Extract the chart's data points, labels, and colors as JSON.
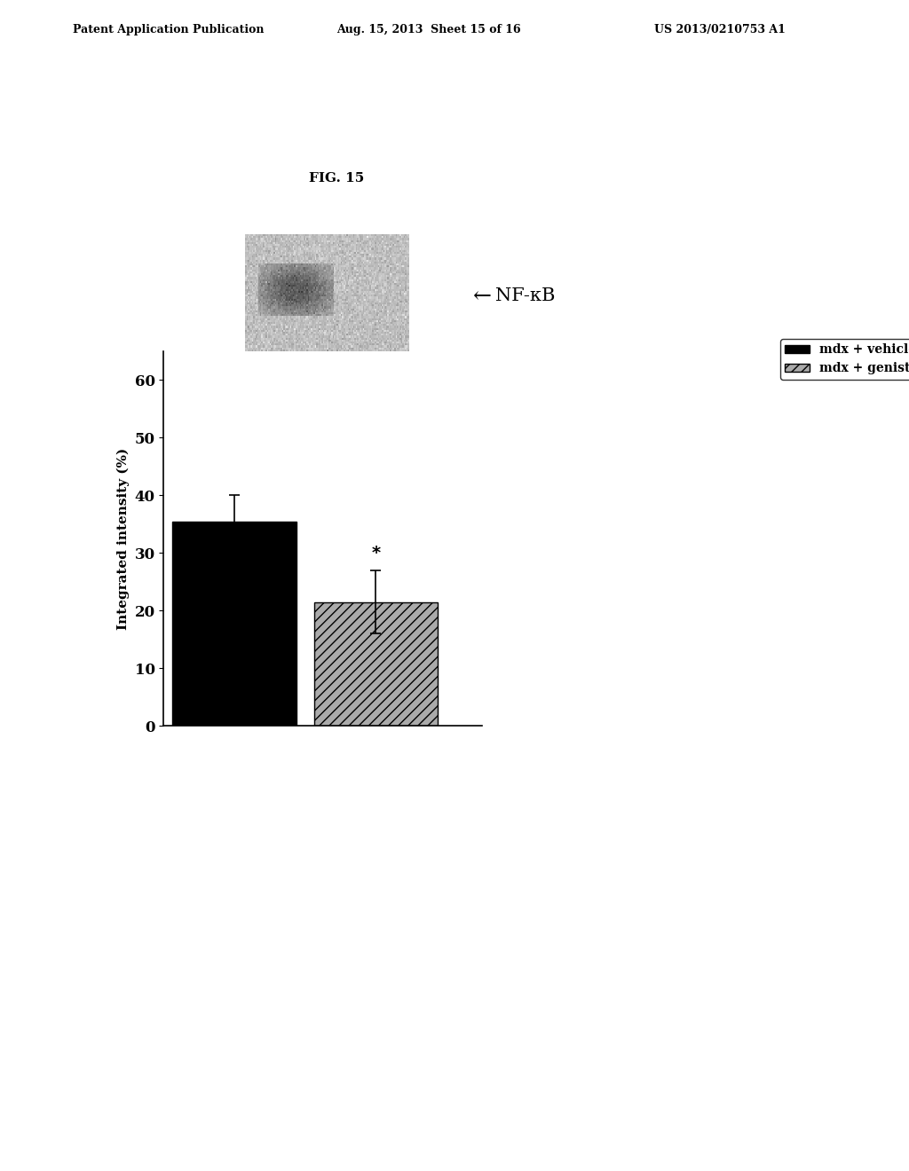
{
  "fig_label": "FIG. 15",
  "header_left": "Patent Application Publication",
  "header_mid": "Aug. 15, 2013  Sheet 15 of 16",
  "header_right": "US 2013/0210753 A1",
  "bar_categories": [
    "mdx + vehicle",
    "mdx + genistein"
  ],
  "bar_values": [
    35.5,
    21.5
  ],
  "bar_errors": [
    4.5,
    5.5
  ],
  "bar_colors": [
    "#000000",
    "#aaaaaa"
  ],
  "bar_hatches": [
    "",
    "///"
  ],
  "ylabel": "Integrated intensity (%)",
  "ylim": [
    0,
    65
  ],
  "yticks": [
    0,
    10,
    20,
    30,
    40,
    50,
    60
  ],
  "legend_labels": [
    "mdx + vehicle",
    "mdx + genistein"
  ],
  "arrow_label": "NF-κB",
  "significance_label": "*",
  "background_color": "#ffffff"
}
